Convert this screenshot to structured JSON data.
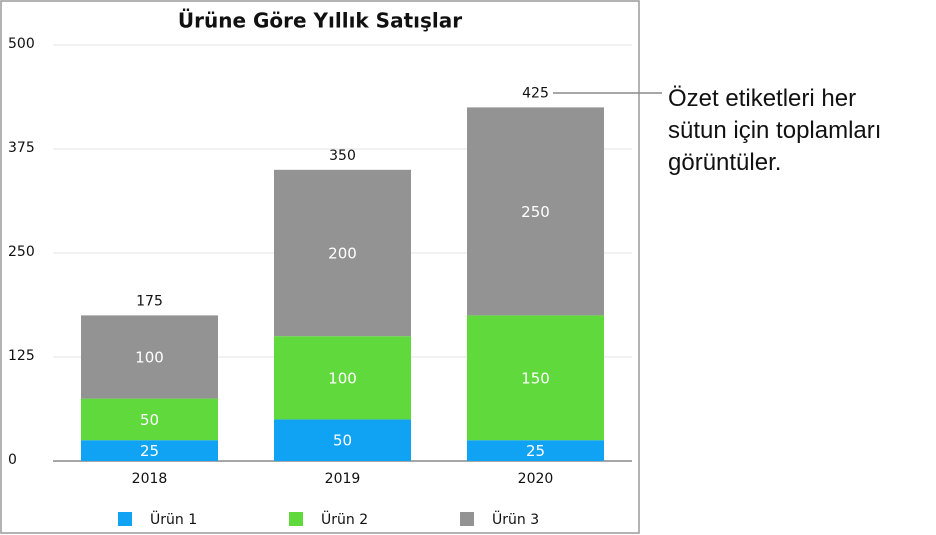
{
  "chart_data": {
    "type": "stacked-bar",
    "title": "Ürüne Göre Yıllık Satışlar",
    "categories": [
      "2018",
      "2019",
      "2020"
    ],
    "series": [
      {
        "name": "Ürün 1",
        "color": "#11a3f3",
        "values": [
          25,
          50,
          25
        ]
      },
      {
        "name": "Ürün 2",
        "color": "#5fd93b",
        "values": [
          50,
          100,
          150
        ]
      },
      {
        "name": "Ürün 3",
        "color": "#939393",
        "values": [
          100,
          200,
          250
        ]
      }
    ],
    "totals": [
      175,
      350,
      425
    ],
    "ylim": [
      0,
      500
    ],
    "yticks": [
      0,
      125,
      250,
      375,
      500
    ],
    "grid": true,
    "annotation": [
      "Özet etiketleri her",
      "sütun için toplamları",
      "görüntüler."
    ]
  }
}
